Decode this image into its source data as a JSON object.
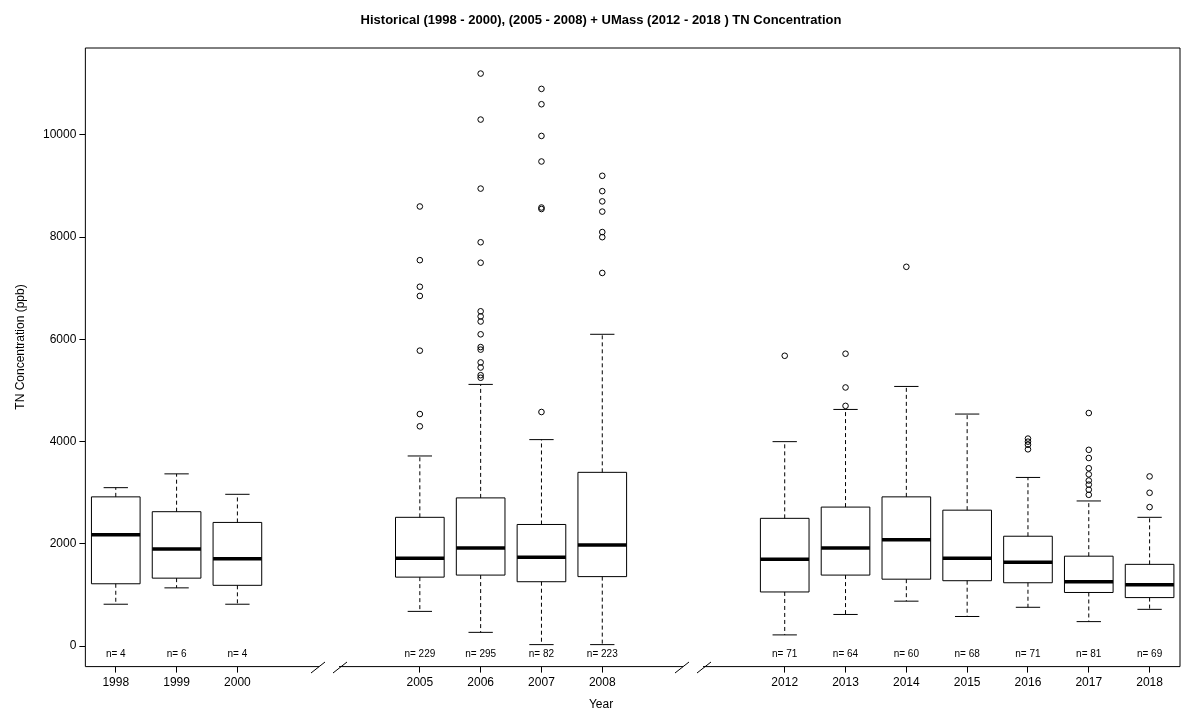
{
  "chart_data": {
    "type": "box",
    "title": "Historical (1998 - 2000), (2005 - 2008) + UMass (2012 -  2018 ) TN Concentration",
    "xlabel": "Year",
    "ylabel": "TN Concentration (ppb)",
    "categories": [
      "1998",
      "1999",
      "2000",
      null,
      null,
      "2005",
      "2006",
      "2007",
      "2008",
      null,
      null,
      "2012",
      "2013",
      "2014",
      "2015",
      "2016",
      "2017",
      "2018"
    ],
    "boxes": [
      {
        "low": 820,
        "q1": 1220,
        "median": 2180,
        "q3": 2920,
        "high": 3100
      },
      {
        "low": 1140,
        "q1": 1330,
        "median": 1900,
        "q3": 2630,
        "high": 3370
      },
      {
        "low": 820,
        "q1": 1190,
        "median": 1710,
        "q3": 2420,
        "high": 2970
      },
      null,
      null,
      {
        "low": 680,
        "q1": 1350,
        "median": 1720,
        "q3": 2520,
        "high": 3720,
        "outliers": [
          8600,
          7550,
          7030,
          6850,
          5780,
          4540,
          4300
        ]
      },
      {
        "low": 270,
        "q1": 1390,
        "median": 1920,
        "q3": 2900,
        "high": 5120,
        "outliers": [
          11200,
          10300,
          8950,
          7900,
          7500,
          6550,
          6450,
          6350,
          6100,
          5850,
          5800,
          5550,
          5450,
          5300,
          5250
        ]
      },
      {
        "low": 30,
        "q1": 1260,
        "median": 1740,
        "q3": 2380,
        "high": 4040,
        "outliers": [
          10900,
          10600,
          9980,
          9480,
          8580,
          8550,
          4580
        ]
      },
      {
        "low": 30,
        "q1": 1360,
        "median": 1980,
        "q3": 3400,
        "high": 6100,
        "outliers": [
          9200,
          8900,
          8700,
          8500,
          8100,
          8000,
          7300
        ]
      },
      null,
      null,
      {
        "low": 220,
        "q1": 1060,
        "median": 1700,
        "q3": 2500,
        "high": 4000,
        "outliers": [
          5680
        ]
      },
      {
        "low": 620,
        "q1": 1390,
        "median": 1920,
        "q3": 2720,
        "high": 4630,
        "outliers": [
          5720,
          5060,
          4700
        ]
      },
      {
        "low": 880,
        "q1": 1310,
        "median": 2080,
        "q3": 2920,
        "high": 5080,
        "outliers": [
          7420
        ]
      },
      {
        "low": 580,
        "q1": 1280,
        "median": 1720,
        "q3": 2660,
        "high": 4540
      },
      {
        "low": 760,
        "q1": 1240,
        "median": 1640,
        "q3": 2150,
        "high": 3300,
        "outliers": [
          4060,
          4000,
          3940,
          3850
        ]
      },
      {
        "low": 480,
        "q1": 1050,
        "median": 1260,
        "q3": 1760,
        "high": 2840,
        "outliers": [
          4560,
          3840,
          3680,
          3480,
          3360,
          3240,
          3160,
          3060,
          2960
        ]
      },
      {
        "low": 720,
        "q1": 950,
        "median": 1200,
        "q3": 1600,
        "high": 2520,
        "outliers": [
          3320,
          3000,
          2720
        ]
      }
    ],
    "color": "#000000",
    "ylim": [
      -400,
      11700
    ],
    "yticks": [
      0,
      2000,
      4000,
      6000,
      8000,
      10000
    ],
    "annotations": [
      "n= 4",
      "n= 6",
      "n= 4",
      "n= 229",
      "n= 295",
      "n= 82",
      "n= 223",
      "n= 71",
      "n= 64",
      "n= 60",
      "n= 68",
      "n= 71",
      "n= 81",
      "n= 69"
    ]
  }
}
